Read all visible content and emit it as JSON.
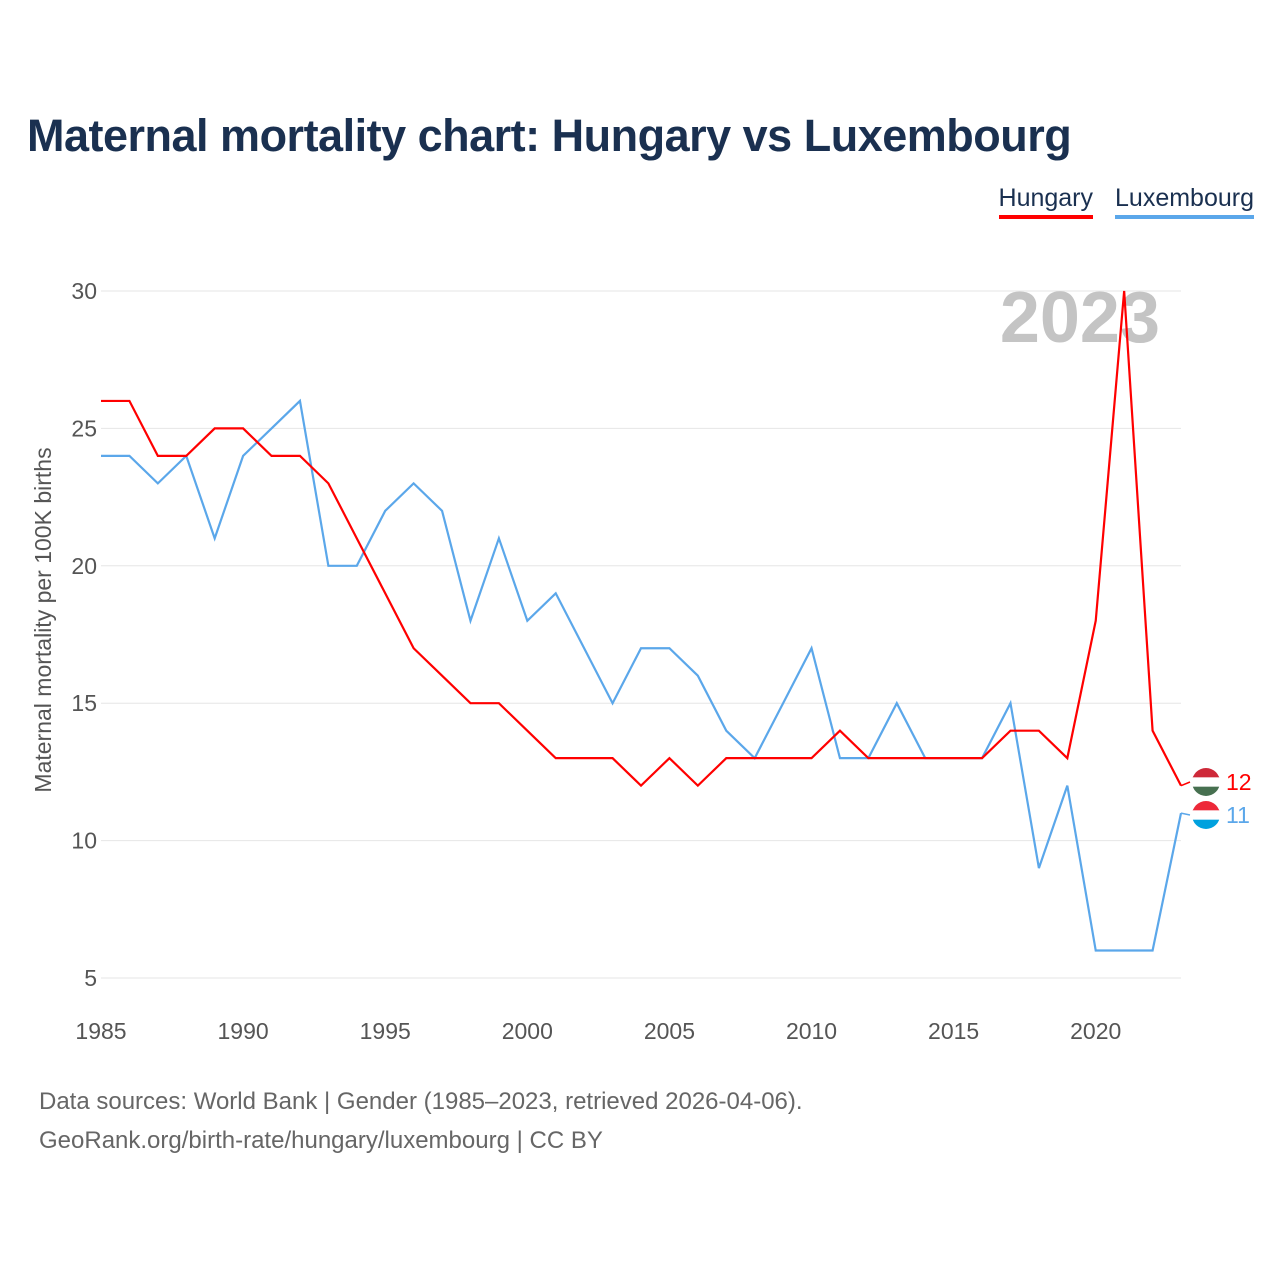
{
  "title": "Maternal mortality chart: Hungary vs Luxembourg",
  "legend": [
    {
      "label": "Hungary",
      "color": "#ff0000"
    },
    {
      "label": "Luxembourg",
      "color": "#5ba7ea"
    }
  ],
  "year_watermark": "2023",
  "source_line1": "Data sources: World Bank | Gender (1985–2023, retrieved 2026-04-06).",
  "source_line2": "GeoRank.org/birth-rate/hungary/luxembourg | CC BY",
  "chart_data": {
    "type": "line",
    "title": "Maternal mortality chart: Hungary vs Luxembourg",
    "xlabel": "",
    "ylabel": "Maternal mortality per 100K births",
    "xlim": [
      1985,
      2023
    ],
    "ylim": [
      5,
      30
    ],
    "xticks": [
      1985,
      1990,
      1995,
      2000,
      2005,
      2010,
      2015,
      2020
    ],
    "yticks": [
      5,
      10,
      15,
      20,
      25,
      30
    ],
    "grid": true,
    "legend_position": "top-right",
    "x": [
      1985,
      1986,
      1987,
      1988,
      1989,
      1990,
      1991,
      1992,
      1993,
      1994,
      1995,
      1996,
      1997,
      1998,
      1999,
      2000,
      2001,
      2002,
      2003,
      2004,
      2005,
      2006,
      2007,
      2008,
      2009,
      2010,
      2011,
      2012,
      2013,
      2014,
      2015,
      2016,
      2017,
      2018,
      2019,
      2020,
      2021,
      2022,
      2023
    ],
    "series": [
      {
        "name": "Hungary",
        "color": "#ff0000",
        "end_label": "12",
        "values": [
          26,
          26,
          24,
          24,
          25,
          25,
          24,
          24,
          23,
          21,
          19,
          17,
          16,
          15,
          15,
          14,
          13,
          13,
          13,
          12,
          13,
          12,
          13,
          13,
          13,
          13,
          14,
          13,
          13,
          13,
          13,
          13,
          14,
          14,
          13,
          18,
          30,
          14,
          12
        ]
      },
      {
        "name": "Luxembourg",
        "color": "#5ba7ea",
        "end_label": "11",
        "values": [
          24,
          24,
          23,
          24,
          21,
          24,
          25,
          26,
          20,
          20,
          22,
          23,
          22,
          18,
          21,
          18,
          19,
          17,
          15,
          17,
          17,
          16,
          14,
          13,
          15,
          17,
          13,
          13,
          15,
          13,
          13,
          13,
          15,
          9,
          12,
          6,
          6,
          6,
          11
        ]
      }
    ]
  }
}
